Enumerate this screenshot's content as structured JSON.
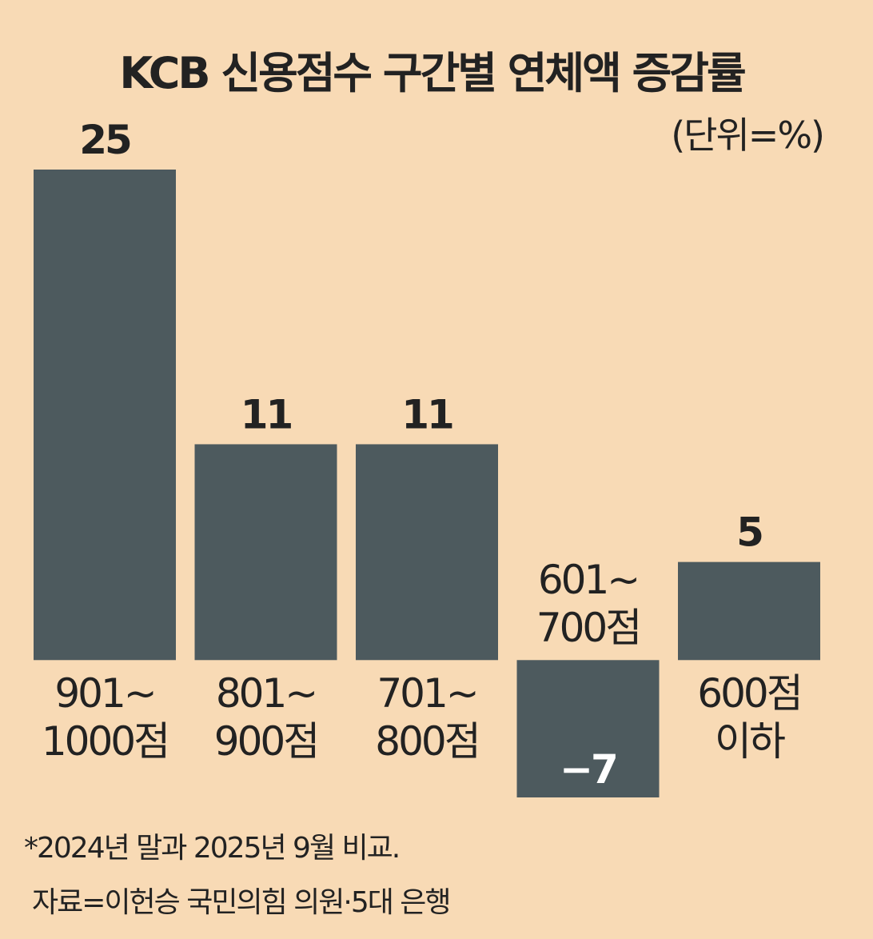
{
  "chart_data": {
    "type": "bar",
    "title": "KCB 신용점수 구간별 연체액 증감률",
    "subtitle": "(단위=%)",
    "categories": [
      "901~\n1000점",
      "801~\n900점",
      "701~\n800점",
      "601~\n700점",
      "600점\n이하"
    ],
    "values": [
      25,
      11,
      11,
      -7,
      5
    ],
    "value_labels": [
      "25",
      "11",
      "11",
      "−7",
      "5"
    ],
    "color": "#4d5a5e",
    "notes": [
      "*2024년 말과 2025년 9월 비교.",
      "자료=이헌승 국민의힘 의원·5대 은행"
    ]
  }
}
